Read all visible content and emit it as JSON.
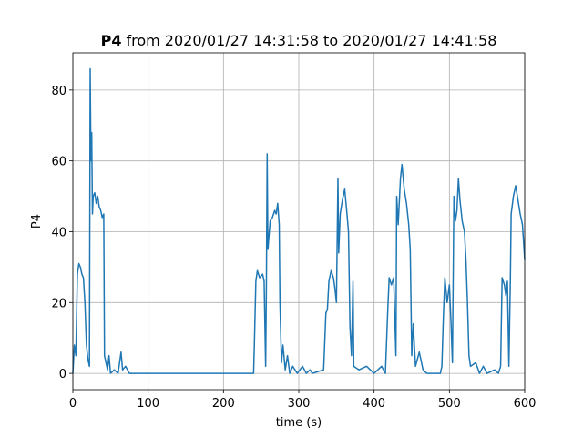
{
  "chart_data": {
    "type": "line",
    "title_bold": "P4",
    "title": "from 2020/01/27 14:31:58 to 2020/01/27 14:41:58",
    "xlabel": "time (s)",
    "ylabel": "P4",
    "xlim": [
      0,
      600
    ],
    "ylim": [
      -4.6,
      90.5
    ],
    "xticks": [
      0,
      100,
      200,
      300,
      400,
      500,
      600
    ],
    "yticks": [
      0,
      20,
      40,
      60,
      80
    ],
    "grid": true,
    "series": [
      {
        "color": "#1f77b4",
        "x": [
          0,
          2,
          4,
          6,
          8,
          10,
          12,
          14,
          16,
          18,
          20,
          22,
          23,
          24,
          25,
          26,
          27,
          29,
          31,
          33,
          35,
          37,
          39,
          41,
          42,
          44,
          46,
          48,
          50,
          55,
          60,
          64,
          66,
          70,
          75,
          80,
          100,
          150,
          200,
          240,
          241,
          243,
          245,
          248,
          252,
          254,
          256,
          257,
          258,
          259,
          262,
          265,
          268,
          270,
          272,
          274,
          275,
          277,
          279,
          282,
          285,
          288,
          292,
          298,
          305,
          310,
          315,
          318,
          333,
          336,
          338,
          340,
          343,
          346,
          348,
          350,
          352,
          353,
          355,
          358,
          361,
          364,
          366,
          368,
          370,
          372,
          373,
          380,
          390,
          400,
          410,
          415,
          418,
          420,
          423,
          426,
          429,
          430,
          432,
          435,
          437,
          440,
          443,
          446,
          448,
          450,
          452,
          455,
          460,
          465,
          470,
          488,
          490,
          492,
          494,
          497,
          500,
          502,
          504,
          506,
          508,
          510,
          512,
          514,
          517,
          520,
          522,
          524,
          526,
          528,
          535,
          540,
          545,
          550,
          560,
          565,
          568,
          570,
          573,
          575,
          577,
          579,
          581,
          582,
          585,
          588,
          591,
          594,
          597,
          600
        ],
        "values": [
          0,
          8,
          5,
          28,
          31,
          30,
          28,
          27,
          20,
          8,
          4,
          2,
          86,
          60,
          68,
          45,
          50,
          51,
          48,
          50,
          47,
          46,
          44,
          45,
          5,
          3,
          1,
          5,
          0,
          1,
          0,
          6,
          1,
          2,
          0,
          0,
          0,
          0,
          0,
          0,
          8,
          26,
          29,
          27,
          28,
          26,
          2,
          25,
          62,
          35,
          43,
          44,
          46,
          45,
          48,
          42,
          20,
          3,
          8,
          1,
          5,
          0,
          2,
          0,
          2,
          0,
          1,
          0,
          1,
          17,
          18,
          26,
          29,
          27,
          24,
          20,
          55,
          34,
          45,
          49,
          52,
          45,
          40,
          13,
          5,
          26,
          2,
          1,
          2,
          0,
          2,
          0,
          17,
          27,
          25,
          27,
          5,
          50,
          42,
          55,
          59,
          52,
          48,
          42,
          35,
          5,
          14,
          2,
          6,
          1,
          0,
          0,
          2,
          16,
          27,
          20,
          25,
          15,
          3,
          50,
          43,
          46,
          55,
          49,
          43,
          40,
          32,
          20,
          5,
          2,
          3,
          0,
          2,
          0,
          1,
          0,
          2,
          27,
          25,
          22,
          26,
          2,
          27,
          45,
          50,
          53,
          49,
          45,
          42,
          32
        ]
      }
    ]
  }
}
